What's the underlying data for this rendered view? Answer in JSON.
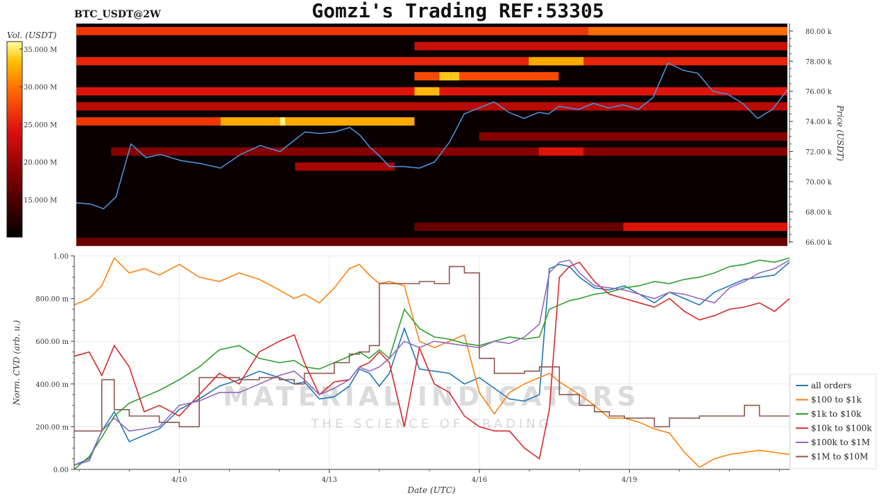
{
  "header": {
    "symbol": "BTC_USDT@2W",
    "title": "Gomzi's Trading REF:53305"
  },
  "watermark": {
    "line1": "MATERIAL INDICATORS",
    "line2": "THE SCIENCE OF TRADING"
  },
  "colors": {
    "all_orders": "#1f77b4",
    "r100_1k": "#ff7f0e",
    "r1k_10k": "#2ca02c",
    "r10k_100k": "#d62728",
    "r100k_1m": "#9467bd",
    "r1m_10m": "#8c564b",
    "price_line": "#4a90d9"
  },
  "chart_data": [
    {
      "type": "heatmap",
      "colorbar": {
        "label": "Vol. (USDT)",
        "ticks": [
          "35.000 M",
          "30.000 M",
          "25.000 M",
          "20.000 M",
          "15.000 M"
        ],
        "tick_values": [
          35,
          30,
          25,
          20,
          15
        ],
        "range": [
          10,
          36
        ]
      },
      "ylabel": "Price (USDT)",
      "y_ticks": [
        "80.00 k",
        "78.00 k",
        "76.00 k",
        "74.00 k",
        "72.00 k",
        "70.00 k",
        "68.00 k",
        "66.00 k"
      ],
      "y_tick_values": [
        80,
        78,
        76,
        74,
        72,
        70,
        68,
        66
      ],
      "ylim": [
        65.9,
        80.5
      ],
      "xlim": [
        7.9,
        22.2
      ],
      "price_series": {
        "x": [
          7.9,
          8.2,
          8.45,
          8.7,
          9.0,
          9.3,
          9.6,
          10.0,
          10.4,
          10.8,
          11.2,
          11.6,
          12.0,
          12.3,
          12.5,
          12.8,
          13.1,
          13.4,
          13.6,
          13.8,
          14.0,
          14.2,
          14.5,
          14.8,
          15.1,
          15.4,
          15.7,
          16.0,
          16.3,
          16.6,
          16.9,
          17.2,
          17.4,
          17.6,
          17.8,
          18.0,
          18.3,
          18.6,
          18.9,
          19.2,
          19.5,
          19.8,
          20.1,
          20.4,
          20.7,
          21.0,
          21.3,
          21.6,
          21.9,
          22.2
        ],
        "y": [
          68.6,
          68.5,
          68.2,
          69.0,
          72.5,
          71.6,
          71.8,
          71.4,
          71.2,
          70.9,
          71.8,
          72.4,
          72.0,
          72.8,
          73.3,
          73.2,
          73.3,
          73.6,
          73.1,
          72.3,
          71.7,
          71.0,
          71.0,
          70.9,
          71.3,
          72.6,
          74.5,
          74.9,
          75.3,
          74.6,
          74.2,
          74.6,
          74.5,
          75.0,
          74.9,
          74.8,
          75.2,
          74.9,
          75.1,
          74.8,
          75.6,
          77.9,
          77.4,
          77.2,
          76.0,
          75.8,
          75.2,
          74.2,
          74.8,
          76.1
        ]
      },
      "bands": [
        {
          "price": 80.0,
          "x0": 7.9,
          "x1": 22.2,
          "v": 24
        },
        {
          "price": 80.0,
          "x0": 18.2,
          "x1": 22.2,
          "v": 27
        },
        {
          "price": 79.0,
          "x0": 14.7,
          "x1": 22.2,
          "v": 21
        },
        {
          "price": 78.0,
          "x0": 7.9,
          "x1": 22.2,
          "v": 23
        },
        {
          "price": 78.0,
          "x0": 17.0,
          "x1": 18.1,
          "v": 30
        },
        {
          "price": 77.0,
          "x0": 14.7,
          "x1": 17.6,
          "v": 25
        },
        {
          "price": 77.0,
          "x0": 15.2,
          "x1": 15.6,
          "v": 32
        },
        {
          "price": 76.0,
          "x0": 7.9,
          "x1": 22.2,
          "v": 22
        },
        {
          "price": 76.0,
          "x0": 14.7,
          "x1": 15.2,
          "v": 31
        },
        {
          "price": 75.0,
          "x0": 7.9,
          "x1": 22.2,
          "v": 20
        },
        {
          "price": 74.0,
          "x0": 7.9,
          "x1": 14.7,
          "v": 24
        },
        {
          "price": 74.0,
          "x0": 10.8,
          "x1": 14.7,
          "v": 30
        },
        {
          "price": 74.0,
          "x0": 12.0,
          "x1": 12.1,
          "v": 35
        },
        {
          "price": 73.0,
          "x0": 16.0,
          "x1": 22.2,
          "v": 17
        },
        {
          "price": 72.0,
          "x0": 8.6,
          "x1": 22.2,
          "v": 17
        },
        {
          "price": 72.0,
          "x0": 17.2,
          "x1": 18.1,
          "v": 22
        },
        {
          "price": 71.0,
          "x0": 12.3,
          "x1": 14.3,
          "v": 19
        },
        {
          "price": 67.0,
          "x0": 14.7,
          "x1": 22.2,
          "v": 15
        },
        {
          "price": 67.0,
          "x0": 18.9,
          "x1": 22.2,
          "v": 22
        },
        {
          "price": 66.0,
          "x0": 7.9,
          "x1": 22.2,
          "v": 15
        }
      ]
    },
    {
      "type": "line",
      "xlabel": "Date (UTC)",
      "ylabel": "Norm. CVD (arb. u.)",
      "x_ticks": [
        "4/10",
        "4/13",
        "4/16",
        "4/19"
      ],
      "x_tick_values": [
        10,
        13,
        16,
        19
      ],
      "y_ticks": [
        "1.00",
        "800.00 m",
        "600.00 m",
        "400.00 m",
        "200.00 m",
        "0.00"
      ],
      "y_tick_values": [
        1.0,
        0.8,
        0.6,
        0.4,
        0.2,
        0.0
      ],
      "ylim": [
        0,
        1
      ],
      "xlim": [
        7.9,
        22.2
      ],
      "grid": true,
      "legend_position": "bottom-right",
      "x": [
        7.9,
        8.2,
        8.45,
        8.7,
        9.0,
        9.3,
        9.6,
        10.0,
        10.4,
        10.8,
        11.2,
        11.6,
        12.0,
        12.3,
        12.5,
        12.8,
        13.1,
        13.4,
        13.6,
        13.8,
        14.0,
        14.2,
        14.5,
        14.8,
        15.1,
        15.4,
        15.7,
        16.0,
        16.3,
        16.6,
        16.9,
        17.2,
        17.4,
        17.6,
        17.8,
        18.0,
        18.3,
        18.6,
        18.9,
        19.2,
        19.5,
        19.8,
        20.1,
        20.4,
        20.7,
        21.0,
        21.3,
        21.6,
        21.9,
        22.2
      ],
      "series": [
        {
          "name": "all orders",
          "values": [
            0.02,
            0.05,
            0.18,
            0.27,
            0.13,
            0.16,
            0.19,
            0.28,
            0.33,
            0.39,
            0.42,
            0.46,
            0.43,
            0.4,
            0.41,
            0.33,
            0.34,
            0.39,
            0.47,
            0.45,
            0.39,
            0.45,
            0.66,
            0.47,
            0.46,
            0.45,
            0.4,
            0.43,
            0.38,
            0.33,
            0.32,
            0.35,
            0.94,
            0.96,
            0.95,
            0.9,
            0.85,
            0.84,
            0.86,
            0.82,
            0.78,
            0.83,
            0.8,
            0.77,
            0.83,
            0.86,
            0.89,
            0.9,
            0.91,
            0.97
          ]
        },
        {
          "name": "$100 to $1k",
          "values": [
            0.77,
            0.8,
            0.86,
            0.99,
            0.92,
            0.94,
            0.91,
            0.96,
            0.9,
            0.88,
            0.92,
            0.89,
            0.84,
            0.8,
            0.82,
            0.78,
            0.85,
            0.94,
            0.96,
            0.91,
            0.87,
            0.88,
            0.86,
            0.6,
            0.57,
            0.6,
            0.63,
            0.36,
            0.26,
            0.36,
            0.4,
            0.43,
            0.45,
            0.41,
            0.38,
            0.35,
            0.3,
            0.24,
            0.24,
            0.22,
            0.19,
            0.17,
            0.08,
            0.01,
            0.05,
            0.07,
            0.08,
            0.09,
            0.08,
            0.07
          ]
        },
        {
          "name": "$1k to $10k",
          "values": [
            0.0,
            0.06,
            0.15,
            0.25,
            0.31,
            0.34,
            0.37,
            0.42,
            0.48,
            0.56,
            0.58,
            0.52,
            0.5,
            0.51,
            0.48,
            0.47,
            0.5,
            0.53,
            0.55,
            0.52,
            0.56,
            0.52,
            0.75,
            0.66,
            0.62,
            0.61,
            0.59,
            0.58,
            0.6,
            0.62,
            0.61,
            0.62,
            0.75,
            0.77,
            0.79,
            0.8,
            0.82,
            0.83,
            0.85,
            0.86,
            0.88,
            0.87,
            0.89,
            0.9,
            0.92,
            0.95,
            0.96,
            0.98,
            0.97,
            0.99
          ]
        },
        {
          "name": "$10k to $100k",
          "values": [
            0.53,
            0.55,
            0.44,
            0.58,
            0.48,
            0.27,
            0.3,
            0.25,
            0.35,
            0.45,
            0.4,
            0.55,
            0.6,
            0.63,
            0.5,
            0.35,
            0.41,
            0.42,
            0.48,
            0.5,
            0.55,
            0.5,
            0.2,
            0.57,
            0.4,
            0.36,
            0.25,
            0.2,
            0.18,
            0.18,
            0.1,
            0.05,
            0.28,
            0.9,
            0.95,
            0.97,
            0.88,
            0.82,
            0.8,
            0.78,
            0.76,
            0.8,
            0.74,
            0.7,
            0.72,
            0.75,
            0.76,
            0.78,
            0.74,
            0.8
          ]
        },
        {
          "name": "$100k to $1M",
          "values": [
            0.02,
            0.04,
            0.18,
            0.24,
            0.18,
            0.19,
            0.2,
            0.3,
            0.32,
            0.36,
            0.36,
            0.4,
            0.44,
            0.46,
            0.42,
            0.35,
            0.38,
            0.42,
            0.48,
            0.46,
            0.48,
            0.52,
            0.6,
            0.57,
            0.6,
            0.59,
            0.58,
            0.57,
            0.6,
            0.59,
            0.62,
            0.68,
            0.92,
            0.97,
            0.98,
            0.92,
            0.86,
            0.85,
            0.84,
            0.82,
            0.8,
            0.83,
            0.82,
            0.8,
            0.78,
            0.85,
            0.88,
            0.92,
            0.94,
            0.98
          ]
        },
        {
          "name": "$1M to $10M",
          "values": [
            0.18,
            0.18,
            0.42,
            0.28,
            0.25,
            0.25,
            0.22,
            0.2,
            0.43,
            0.43,
            0.42,
            0.43,
            0.42,
            0.4,
            0.45,
            0.45,
            0.5,
            0.54,
            0.55,
            0.58,
            0.87,
            0.87,
            0.87,
            0.88,
            0.87,
            0.95,
            0.92,
            0.52,
            0.45,
            0.45,
            0.46,
            0.48,
            0.48,
            0.35,
            0.35,
            0.3,
            0.27,
            0.25,
            0.24,
            0.24,
            0.2,
            0.24,
            0.24,
            0.25,
            0.25,
            0.25,
            0.3,
            0.25,
            0.25,
            0.25
          ]
        }
      ]
    }
  ]
}
